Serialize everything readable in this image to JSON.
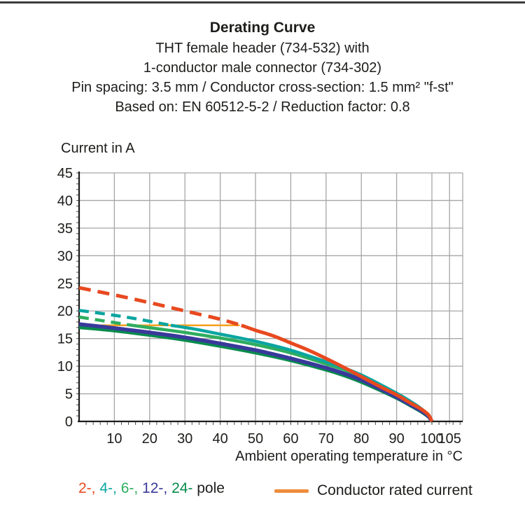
{
  "header": {
    "title": "Derating Curve",
    "subtitle_lines": [
      "THT female header (734-532) with",
      "1-conductor male connector (734-302)",
      "Pin spacing: 3.5 mm / Conductor cross-section: 1.5 mm² \"f-st\"",
      "Based on: EN 60512-5-2 / Reduction factor: 0.8"
    ]
  },
  "legend": {
    "poles": [
      {
        "label": "2-,",
        "color": "#e8491f"
      },
      {
        "label": "4-,",
        "color": "#0ba5a0"
      },
      {
        "label": "6-,",
        "color": "#2ead5f"
      },
      {
        "label": "12-,",
        "color": "#39399b"
      },
      {
        "label": "24-",
        "color": "#088b4c"
      }
    ],
    "poles_suffix": " pole",
    "rated_label": "Conductor rated current",
    "rated_swatch_color": "#ee8d3b"
  },
  "chart_data": {
    "type": "line",
    "title": "Derating Curve",
    "xlabel": "Ambient operating temperature in °C",
    "ylabel": "Current in A",
    "xlim": [
      0,
      108.7
    ],
    "ylim": [
      0,
      45
    ],
    "xticks": [
      10,
      20,
      30,
      40,
      50,
      60,
      70,
      80,
      90,
      100,
      105
    ],
    "yticks": [
      0,
      5,
      10,
      15,
      20,
      25,
      30,
      35,
      40,
      45
    ],
    "x_minor_step": 2,
    "y_minor_step": 1,
    "grid": true,
    "grid_color": "#a6a6a6",
    "axis_color": "#1d1d1b",
    "legend_position": "bottom",
    "series": [
      {
        "name": "Conductor rated current",
        "color": "#f5a01e",
        "width": 2.5,
        "dashed_until_x": null,
        "points": [
          [
            0,
            17.4
          ],
          [
            45.5,
            17.4
          ]
        ]
      },
      {
        "name": "24-pole",
        "color": "#088b4c",
        "width": 4.5,
        "dashed_until_x": null,
        "points": [
          [
            0,
            17.0
          ],
          [
            10,
            16.4
          ],
          [
            20,
            15.6
          ],
          [
            30,
            14.7
          ],
          [
            40,
            13.6
          ],
          [
            50,
            12.4
          ],
          [
            60,
            11.0
          ],
          [
            70,
            9.3
          ],
          [
            75,
            8.3
          ],
          [
            80,
            7.1
          ],
          [
            85,
            5.7
          ],
          [
            90,
            4.2
          ],
          [
            94,
            2.8
          ],
          [
            97,
            1.7
          ],
          [
            99,
            0.8
          ],
          [
            100,
            0
          ]
        ]
      },
      {
        "name": "6-pole",
        "color": "#2ead5f",
        "width": 4.5,
        "dashed_until_x": 15,
        "points": [
          [
            0,
            18.9
          ],
          [
            7,
            18.2
          ],
          [
            15,
            17.4
          ],
          [
            22,
            16.8
          ],
          [
            30,
            16.1
          ],
          [
            40,
            15.1
          ],
          [
            50,
            13.9
          ],
          [
            60,
            12.4
          ],
          [
            70,
            10.4
          ],
          [
            75,
            9.4
          ],
          [
            80,
            8.1
          ],
          [
            85,
            6.5
          ],
          [
            90,
            4.9
          ],
          [
            94,
            3.4
          ],
          [
            97,
            2.1
          ],
          [
            99,
            1.0
          ],
          [
            100,
            0
          ]
        ]
      },
      {
        "name": "12-pole",
        "color": "#39399b",
        "width": 5.5,
        "dashed_until_x": null,
        "points": [
          [
            0,
            17.6
          ],
          [
            10,
            16.9
          ],
          [
            20,
            16.1
          ],
          [
            30,
            15.2
          ],
          [
            40,
            14.1
          ],
          [
            50,
            12.9
          ],
          [
            60,
            11.4
          ],
          [
            70,
            9.7
          ],
          [
            75,
            8.7
          ],
          [
            80,
            7.5
          ],
          [
            85,
            6.0
          ],
          [
            90,
            4.4
          ],
          [
            94,
            3.0
          ],
          [
            97,
            1.9
          ],
          [
            99,
            0.9
          ],
          [
            100,
            0
          ]
        ]
      },
      {
        "name": "4-pole",
        "color": "#0ba5a0",
        "width": 4.5,
        "dashed_until_x": 26,
        "points": [
          [
            0,
            20.1
          ],
          [
            8,
            19.4
          ],
          [
            16,
            18.6
          ],
          [
            26,
            17.4
          ],
          [
            32,
            16.8
          ],
          [
            40,
            15.8
          ],
          [
            50,
            14.5
          ],
          [
            60,
            12.9
          ],
          [
            70,
            10.8
          ],
          [
            75,
            9.7
          ],
          [
            80,
            8.4
          ],
          [
            85,
            6.8
          ],
          [
            90,
            5.1
          ],
          [
            94,
            3.6
          ],
          [
            97,
            2.3
          ],
          [
            99,
            1.1
          ],
          [
            100,
            0
          ]
        ]
      },
      {
        "name": "2-pole",
        "color": "#e8491f",
        "width": 5,
        "dashed_until_x": 46,
        "points": [
          [
            0,
            24.2
          ],
          [
            10,
            22.9
          ],
          [
            20,
            21.5
          ],
          [
            30,
            20.0
          ],
          [
            40,
            18.5
          ],
          [
            46,
            17.4
          ],
          [
            50,
            16.5
          ],
          [
            55,
            15.5
          ],
          [
            60,
            14.2
          ],
          [
            65,
            12.9
          ],
          [
            70,
            11.4
          ],
          [
            75,
            9.8
          ],
          [
            80,
            8.1
          ],
          [
            85,
            6.4
          ],
          [
            90,
            4.8
          ],
          [
            94,
            3.3
          ],
          [
            97,
            2.2
          ],
          [
            99,
            1.2
          ],
          [
            100,
            0
          ]
        ]
      }
    ]
  }
}
